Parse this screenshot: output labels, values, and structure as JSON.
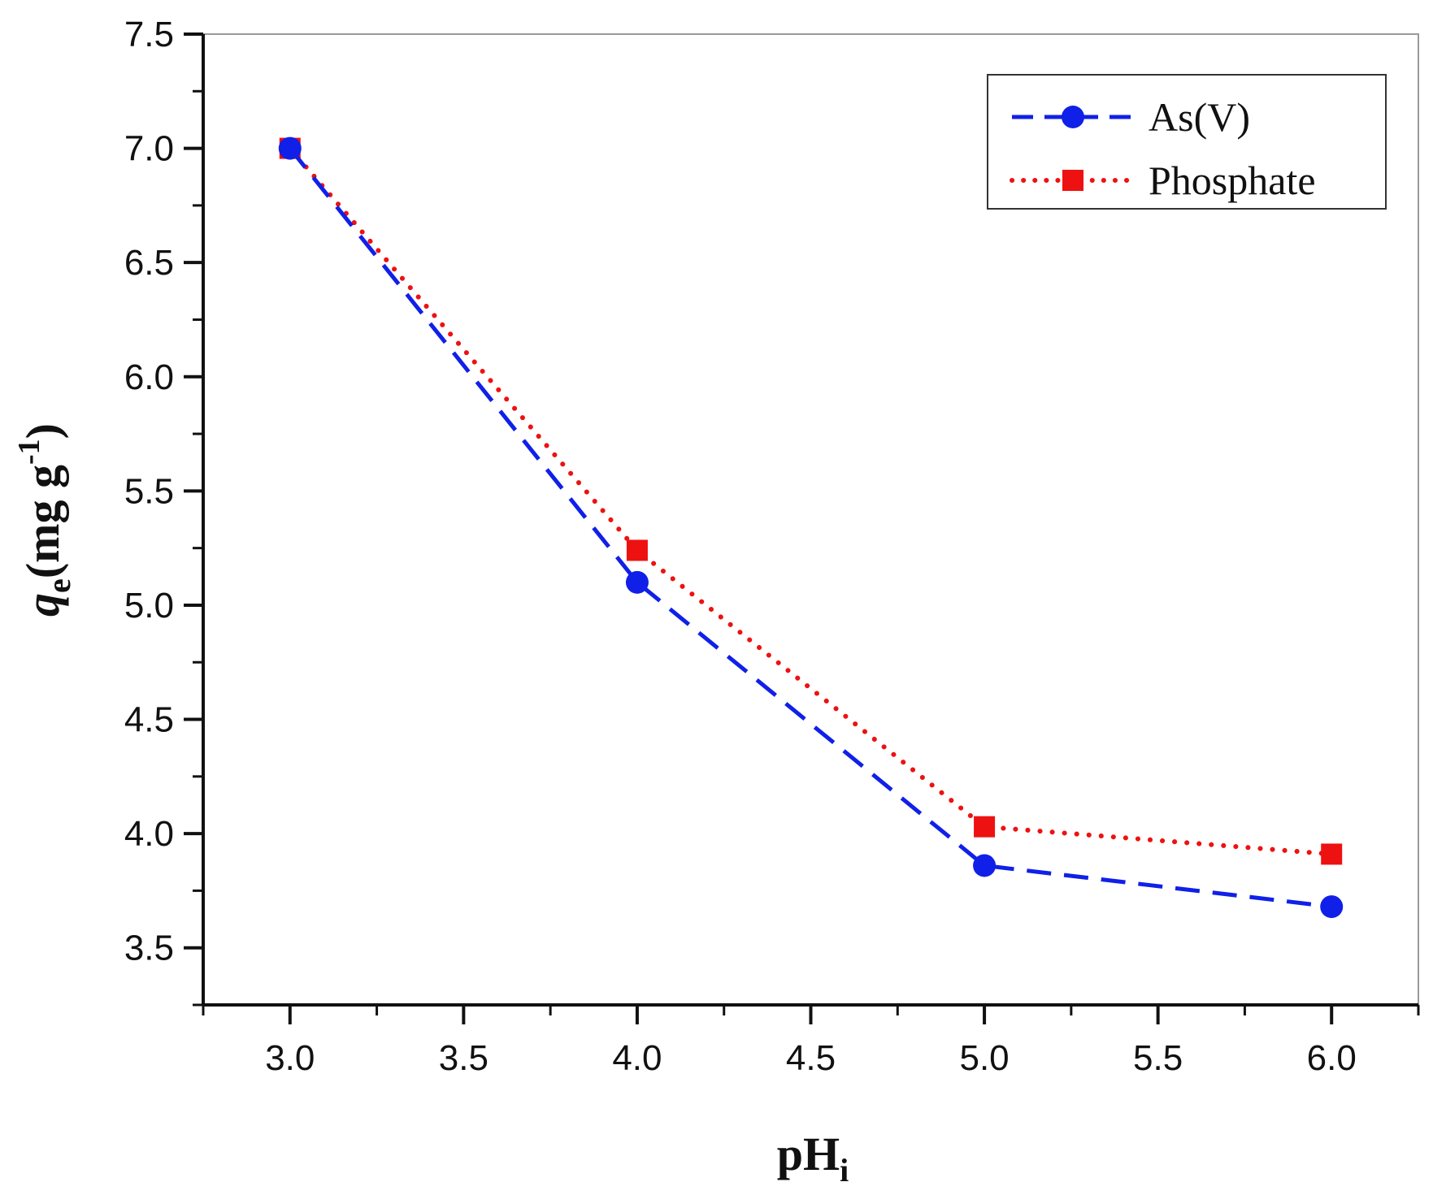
{
  "chart_data": {
    "type": "line",
    "x": [
      3.0,
      4.0,
      5.0,
      6.0
    ],
    "series": [
      {
        "name": "As(V)",
        "values": [
          7.0,
          5.1,
          3.86,
          3.68
        ],
        "color": "#1020e8",
        "marker": "circle",
        "line_style": "dashed"
      },
      {
        "name": "Phosphate",
        "values": [
          7.0,
          5.24,
          4.03,
          3.91
        ],
        "color": "#ee1111",
        "marker": "square",
        "line_style": "dotted"
      }
    ],
    "xlabel": {
      "main": "pH",
      "sub": "i"
    },
    "ylabel": {
      "var": "q",
      "sub": "e",
      "units": "(mg g",
      "exp": "-1",
      "close": ")"
    },
    "xlim": [
      2.75,
      6.25
    ],
    "ylim": [
      3.25,
      7.5
    ],
    "x_ticks": [
      "3.0",
      "3.5",
      "4.0",
      "4.5",
      "5.0",
      "5.5",
      "6.0"
    ],
    "y_ticks": [
      "3.5",
      "4.0",
      "4.5",
      "5.0",
      "5.5",
      "6.0",
      "6.5",
      "7.0",
      "7.5"
    ],
    "grid": false,
    "legend_position": "top-right"
  }
}
